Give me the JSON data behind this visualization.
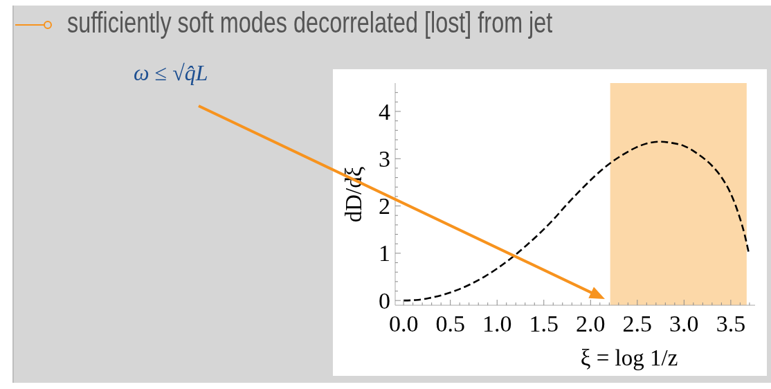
{
  "chart_data": {
    "type": "line",
    "title": "sufficiently soft modes decorrelated [lost] from jet",
    "annotations": [
      "ω ≤ √q̂L"
    ],
    "xlabel": "ξ = log 1/z",
    "ylabel": "dD/dξ",
    "x": [
      0,
      0.13,
      0.27,
      0.42,
      0.57,
      0.72,
      0.87,
      1.01,
      1.16,
      1.31,
      1.46,
      1.61,
      1.75,
      1.9,
      2.05,
      2.2,
      2.35,
      2.49,
      2.64,
      2.75,
      2.85,
      3,
      3.14,
      3.29,
      3.41,
      3.5,
      3.59,
      3.65,
      3.69
    ],
    "series": [
      {
        "color": "#000000",
        "values": [
          0,
          0.01,
          0.05,
          0.12,
          0.22,
          0.35,
          0.51,
          0.69,
          0.91,
          1.16,
          1.43,
          1.73,
          2.04,
          2.35,
          2.64,
          2.89,
          3.09,
          3.24,
          3.34,
          3.36,
          3.34,
          3.27,
          3.11,
          2.87,
          2.58,
          2.26,
          1.79,
          1.38,
          1.03
        ]
      }
    ],
    "line_style": "dashed",
    "marker": "none",
    "xlim": [
      -0.09,
      3.76
    ],
    "ylim": [
      -0.1,
      4.6
    ],
    "xticks": [
      {
        "value": 0,
        "label": "0.0"
      },
      {
        "value": 0.1,
        "label": null
      },
      {
        "value": 0.2,
        "label": null
      },
      {
        "value": 0.3,
        "label": null
      },
      {
        "value": 0.4,
        "label": null
      },
      0.5,
      {
        "value": 0.6,
        "label": null
      },
      {
        "value": 0.7,
        "label": null
      },
      {
        "value": 0.8,
        "label": null
      },
      {
        "value": 0.9,
        "label": null
      },
      {
        "value": 1,
        "label": "1.0"
      },
      {
        "value": 1.1,
        "label": null
      },
      {
        "value": 1.2,
        "label": null
      },
      {
        "value": 1.3,
        "label": null
      },
      {
        "value": 1.4,
        "label": null
      },
      1.5,
      {
        "value": 1.6,
        "label": null
      },
      {
        "value": 1.7,
        "label": null
      },
      {
        "value": 1.8,
        "label": null
      },
      {
        "value": 1.9,
        "label": null
      },
      {
        "value": 2,
        "label": "2.0"
      },
      {
        "value": 2.1,
        "label": null
      },
      {
        "value": 2.2,
        "label": null
      },
      {
        "value": 2.3,
        "label": null
      },
      {
        "value": 2.4,
        "label": null
      },
      2.5,
      {
        "value": 2.6,
        "label": null
      },
      {
        "value": 2.7,
        "label": null
      },
      {
        "value": 2.8,
        "label": null
      },
      {
        "value": 2.9,
        "label": null
      },
      {
        "value": 3,
        "label": "3.0"
      },
      {
        "value": 3.1,
        "label": null
      },
      {
        "value": 3.2,
        "label": null
      },
      {
        "value": 3.3,
        "label": null
      },
      {
        "value": 3.4,
        "label": null
      },
      3.5,
      {
        "value": 3.6,
        "label": null
      },
      {
        "value": 3.7,
        "label": null
      }
    ],
    "yticks": [
      0,
      {
        "value": 0.2,
        "label": null
      },
      {
        "value": 0.4,
        "label": null
      },
      {
        "value": 0.6,
        "label": null
      },
      {
        "value": 0.8,
        "label": null
      },
      1,
      {
        "value": 1.2,
        "label": null
      },
      {
        "value": 1.4,
        "label": null
      },
      {
        "value": 1.6,
        "label": null
      },
      {
        "value": 1.8,
        "label": null
      },
      2,
      {
        "value": 2.2,
        "label": null
      },
      {
        "value": 2.4,
        "label": null
      },
      {
        "value": 2.6,
        "label": null
      },
      {
        "value": 2.8,
        "label": null
      },
      3,
      {
        "value": 3.2,
        "label": null
      },
      {
        "value": 3.4,
        "label": null
      },
      {
        "value": 3.6,
        "label": null
      },
      {
        "value": 3.8,
        "label": null
      },
      4,
      {
        "value": 4.2,
        "label": null
      },
      {
        "value": 4.4,
        "label": null
      }
    ],
    "bands": [
      {
        "axis": "x",
        "from": 2.21,
        "to": 3.67,
        "color": "#fcd8a8"
      }
    ]
  }
}
